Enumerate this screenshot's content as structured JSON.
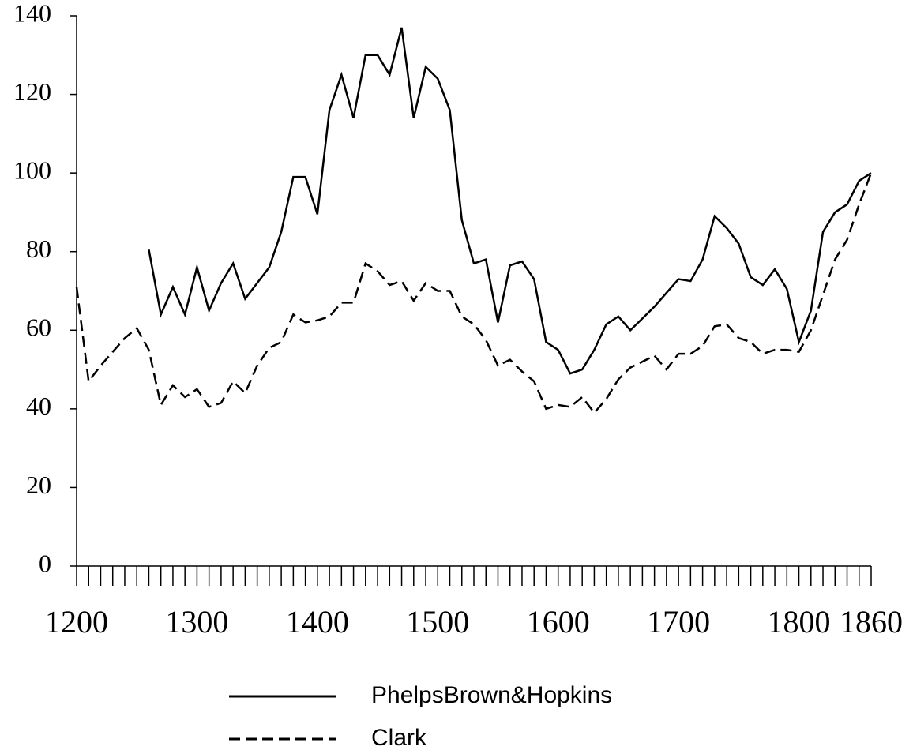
{
  "chart_data": {
    "type": "line",
    "x": [
      1200,
      1210,
      1220,
      1230,
      1240,
      1250,
      1260,
      1270,
      1280,
      1290,
      1300,
      1310,
      1320,
      1330,
      1340,
      1350,
      1360,
      1370,
      1380,
      1390,
      1400,
      1410,
      1420,
      1430,
      1440,
      1450,
      1460,
      1470,
      1480,
      1490,
      1500,
      1510,
      1520,
      1530,
      1540,
      1550,
      1560,
      1570,
      1580,
      1590,
      1600,
      1610,
      1620,
      1630,
      1640,
      1650,
      1660,
      1670,
      1680,
      1690,
      1700,
      1710,
      1720,
      1730,
      1740,
      1750,
      1760,
      1770,
      1780,
      1790,
      1800,
      1810,
      1820,
      1830,
      1840,
      1850,
      1860
    ],
    "series": [
      {
        "name": "PhelpsBrown&Hopkins",
        "color": "#000000",
        "dash": "solid",
        "values": [
          null,
          null,
          null,
          null,
          null,
          null,
          80.5,
          64,
          71,
          64,
          76,
          65,
          72,
          77,
          68,
          72,
          76,
          85,
          99,
          99,
          89.5,
          116,
          125,
          114,
          130,
          130,
          125,
          137,
          114,
          127,
          124,
          116,
          88,
          77,
          78,
          62,
          76.5,
          77.5,
          73,
          57,
          55,
          49,
          50,
          55,
          61.5,
          63.5,
          60,
          63,
          66,
          69.5,
          73,
          72.5,
          78,
          89,
          86,
          82,
          73.5,
          71.5,
          75.5,
          70.5,
          57,
          65,
          85,
          90,
          92,
          98,
          100
        ]
      },
      {
        "name": "Clark",
        "color": "#000000",
        "dash": "dashed",
        "values": [
          71,
          47,
          51,
          54.5,
          58,
          60.5,
          55,
          41,
          46,
          43,
          45,
          40.5,
          41.5,
          47,
          44,
          51,
          55.5,
          57,
          64,
          62,
          62.5,
          63.5,
          67,
          67,
          77,
          75,
          71.5,
          72.5,
          67.5,
          72,
          70,
          70,
          63.5,
          61.5,
          57.5,
          51,
          52.5,
          49.5,
          47,
          40,
          41,
          40.5,
          43,
          39,
          42.5,
          47.5,
          50.5,
          52,
          53.5,
          50,
          54,
          54,
          56,
          61,
          61.5,
          58,
          57,
          54,
          55,
          55,
          54.5,
          60,
          69,
          78,
          83,
          92,
          100
        ]
      }
    ],
    "xlim": [
      1200,
      1860
    ],
    "xticks": [
      1200,
      1300,
      1400,
      1500,
      1600,
      1700,
      1800,
      1860
    ],
    "ylim": [
      0,
      140
    ],
    "yticks": [
      0,
      20,
      40,
      60,
      80,
      100,
      120,
      140
    ],
    "legend": "bottom"
  }
}
